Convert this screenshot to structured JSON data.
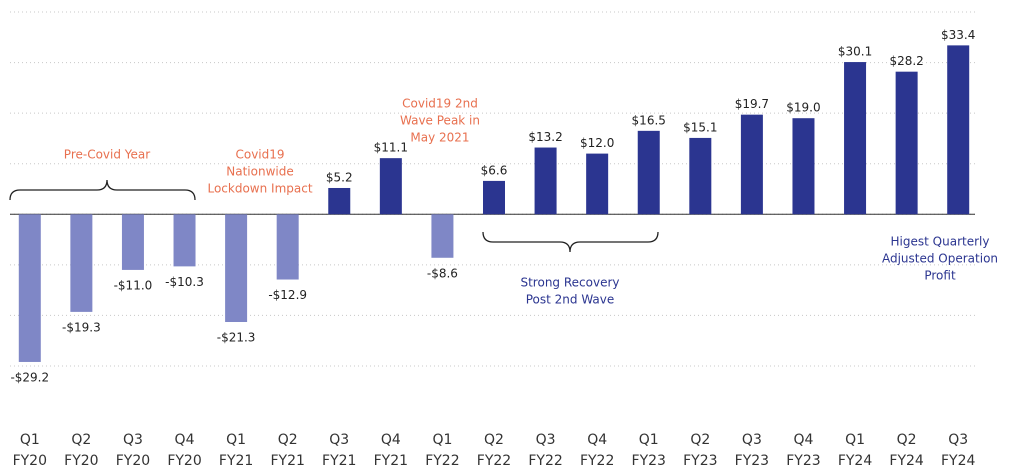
{
  "chart_data": {
    "type": "bar",
    "categories": [
      [
        "Q1",
        "FY20"
      ],
      [
        "Q2",
        "FY20"
      ],
      [
        "Q3",
        "FY20"
      ],
      [
        "Q4",
        "FY20"
      ],
      [
        "Q1",
        "FY21"
      ],
      [
        "Q2",
        "FY21"
      ],
      [
        "Q3",
        "FY21"
      ],
      [
        "Q4",
        "FY21"
      ],
      [
        "Q1",
        "FY22"
      ],
      [
        "Q2",
        "FY22"
      ],
      [
        "Q3",
        "FY22"
      ],
      [
        "Q4",
        "FY22"
      ],
      [
        "Q1",
        "FY23"
      ],
      [
        "Q2",
        "FY23"
      ],
      [
        "Q3",
        "FY23"
      ],
      [
        "Q4",
        "FY23"
      ],
      [
        "Q1",
        "FY24"
      ],
      [
        "Q2",
        "FY24"
      ],
      [
        "Q3",
        "FY24"
      ]
    ],
    "values": [
      -29.2,
      -19.3,
      -11.0,
      -10.3,
      -21.3,
      -12.9,
      5.2,
      11.1,
      -8.6,
      6.6,
      13.2,
      12.0,
      16.5,
      15.1,
      19.7,
      19.0,
      30.1,
      28.2,
      33.4
    ],
    "value_labels": [
      "-$29.2",
      "-$19.3",
      "-$11.0",
      "-$10.3",
      "-$21.3",
      "-$12.9",
      "$5.2",
      "$11.1",
      "-$8.6",
      "$6.6",
      "$13.2",
      "$12.0",
      "$16.5",
      "$15.1",
      "$19.7",
      "$19.0",
      "$30.1",
      "$28.2",
      "$33.4"
    ],
    "colors": [
      "#7f87c6",
      "#7f87c6",
      "#7f87c6",
      "#7f87c6",
      "#7f87c6",
      "#7f87c6",
      "#2b3590",
      "#2b3590",
      "#7f87c6",
      "#2b3590",
      "#2b3590",
      "#2b3590",
      "#2b3590",
      "#2b3590",
      "#2b3590",
      "#2b3590",
      "#2b3590",
      "#2b3590",
      "#2b3590"
    ],
    "ylim": [
      -30,
      40
    ],
    "yticks": [
      -30,
      -20,
      -10,
      0,
      10,
      20,
      30,
      40
    ],
    "grid": true,
    "annotations": [
      {
        "lines": [
          "Pre-Covid Year"
        ],
        "color": "#e8704f"
      },
      {
        "lines": [
          "Covid19",
          "Nationwide",
          "Lockdown Impact"
        ],
        "color": "#e8704f"
      },
      {
        "lines": [
          "Covid19 2nd",
          "Wave Peak in",
          "May 2021"
        ],
        "color": "#e8704f"
      },
      {
        "lines": [
          "Strong Recovery",
          "Post 2nd Wave"
        ],
        "color": "#2b3590"
      },
      {
        "lines": [
          "Higest Quarterly",
          "Adjusted Operation",
          "Profit"
        ],
        "color": "#2b3590"
      }
    ]
  }
}
